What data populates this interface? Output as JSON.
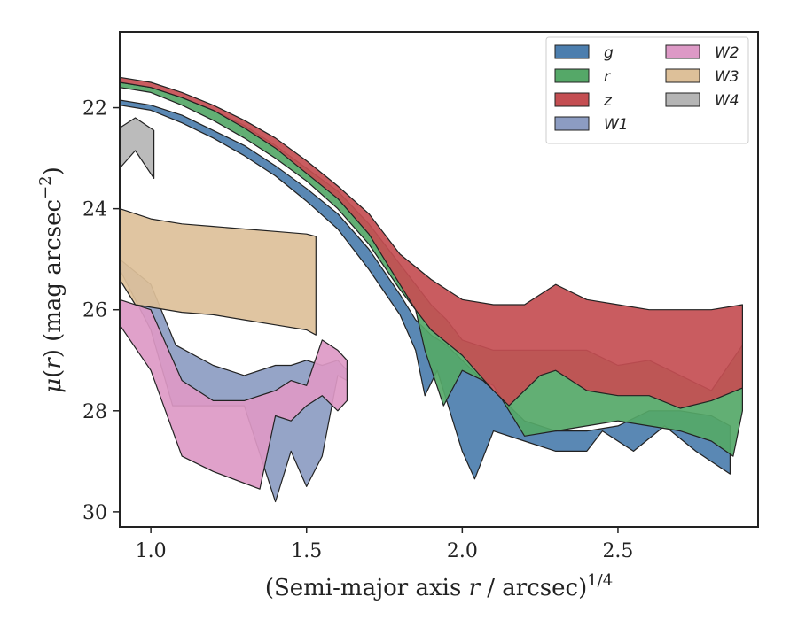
{
  "chart_data": {
    "type": "area",
    "title": "",
    "xlabel_parts": {
      "pre": "(Semi-major axis ",
      "var": "r",
      "post": " / arcsec)",
      "sup": "1/4"
    },
    "ylabel_parts": {
      "mu": "μ",
      "open": "(",
      "var": "r",
      "close": ") (mag arcsec",
      "sup": "−2",
      "end": ")"
    },
    "xlim": [
      0.9,
      2.95
    ],
    "ylim": [
      30.3,
      20.5
    ],
    "y_inverted": true,
    "x_ticks": [
      1.0,
      1.5,
      2.0,
      2.5
    ],
    "x_tick_labels": [
      "1.0",
      "1.5",
      "2.0",
      "2.5"
    ],
    "y_ticks": [
      22,
      24,
      26,
      28,
      30
    ],
    "y_tick_labels": [
      "22",
      "24",
      "26",
      "28",
      "30"
    ],
    "grid": false,
    "legend": {
      "position": "top-right",
      "columns": 2
    },
    "series": [
      {
        "name": "g",
        "color": "#4c7eae",
        "upper": [
          [
            0.9,
            21.85
          ],
          [
            1.0,
            21.95
          ],
          [
            1.1,
            22.15
          ],
          [
            1.2,
            22.45
          ],
          [
            1.3,
            22.75
          ],
          [
            1.4,
            23.15
          ],
          [
            1.5,
            23.6
          ],
          [
            1.6,
            24.1
          ],
          [
            1.7,
            24.8
          ],
          [
            1.8,
            25.7
          ],
          [
            1.85,
            26.2
          ],
          [
            1.9,
            26.5
          ],
          [
            1.95,
            26.7
          ],
          [
            2.0,
            27.0
          ],
          [
            2.05,
            27.3
          ],
          [
            2.1,
            27.6
          ],
          [
            2.15,
            27.9
          ],
          [
            2.2,
            28.2
          ],
          [
            2.3,
            28.4
          ],
          [
            2.4,
            28.4
          ],
          [
            2.5,
            28.3
          ],
          [
            2.6,
            28.0
          ],
          [
            2.7,
            28.0
          ],
          [
            2.8,
            28.1
          ],
          [
            2.86,
            28.3
          ]
        ],
        "lower": [
          [
            0.9,
            21.95
          ],
          [
            1.0,
            22.05
          ],
          [
            1.1,
            22.3
          ],
          [
            1.2,
            22.6
          ],
          [
            1.3,
            22.95
          ],
          [
            1.4,
            23.35
          ],
          [
            1.5,
            23.85
          ],
          [
            1.6,
            24.4
          ],
          [
            1.7,
            25.2
          ],
          [
            1.8,
            26.1
          ],
          [
            1.85,
            26.8
          ],
          [
            1.88,
            27.7
          ],
          [
            1.92,
            27.2
          ],
          [
            2.0,
            28.8
          ],
          [
            2.04,
            29.35
          ],
          [
            2.1,
            28.4
          ],
          [
            2.2,
            28.6
          ],
          [
            2.3,
            28.8
          ],
          [
            2.4,
            28.8
          ],
          [
            2.45,
            28.4
          ],
          [
            2.55,
            28.8
          ],
          [
            2.65,
            28.3
          ],
          [
            2.75,
            28.8
          ],
          [
            2.86,
            29.25
          ]
        ]
      },
      {
        "name": "r",
        "color": "#55a868",
        "upper": [
          [
            0.9,
            21.5
          ],
          [
            1.0,
            21.6
          ],
          [
            1.1,
            21.8
          ],
          [
            1.2,
            22.05
          ],
          [
            1.3,
            22.35
          ],
          [
            1.4,
            22.75
          ],
          [
            1.5,
            23.2
          ],
          [
            1.6,
            23.65
          ],
          [
            1.7,
            24.3
          ],
          [
            1.8,
            25.1
          ],
          [
            1.85,
            25.5
          ],
          [
            1.9,
            25.9
          ],
          [
            1.95,
            26.2
          ],
          [
            2.0,
            26.6
          ],
          [
            2.05,
            26.7
          ],
          [
            2.1,
            26.8
          ],
          [
            2.2,
            26.8
          ],
          [
            2.3,
            26.8
          ],
          [
            2.4,
            26.8
          ],
          [
            2.5,
            27.1
          ],
          [
            2.6,
            27.0
          ],
          [
            2.7,
            27.3
          ],
          [
            2.8,
            27.6
          ],
          [
            2.9,
            26.7
          ]
        ],
        "lower": [
          [
            0.9,
            21.6
          ],
          [
            1.0,
            21.7
          ],
          [
            1.1,
            21.95
          ],
          [
            1.2,
            22.25
          ],
          [
            1.3,
            22.6
          ],
          [
            1.4,
            23.0
          ],
          [
            1.5,
            23.45
          ],
          [
            1.6,
            24.0
          ],
          [
            1.7,
            24.7
          ],
          [
            1.8,
            25.6
          ],
          [
            1.85,
            26.0
          ],
          [
            1.88,
            26.8
          ],
          [
            1.94,
            27.9
          ],
          [
            2.0,
            27.2
          ],
          [
            2.1,
            27.5
          ],
          [
            2.2,
            28.5
          ],
          [
            2.3,
            28.4
          ],
          [
            2.4,
            28.3
          ],
          [
            2.5,
            28.2
          ],
          [
            2.6,
            28.3
          ],
          [
            2.7,
            28.4
          ],
          [
            2.8,
            28.6
          ],
          [
            2.87,
            28.9
          ],
          [
            2.9,
            28.0
          ]
        ]
      },
      {
        "name": "z",
        "color": "#c44e52",
        "upper": [
          [
            0.9,
            21.4
          ],
          [
            1.0,
            21.5
          ],
          [
            1.1,
            21.7
          ],
          [
            1.2,
            21.95
          ],
          [
            1.3,
            22.25
          ],
          [
            1.4,
            22.6
          ],
          [
            1.5,
            23.05
          ],
          [
            1.6,
            23.55
          ],
          [
            1.7,
            24.1
          ],
          [
            1.8,
            24.9
          ],
          [
            1.9,
            25.4
          ],
          [
            2.0,
            25.8
          ],
          [
            2.1,
            25.9
          ],
          [
            2.2,
            25.9
          ],
          [
            2.3,
            25.5
          ],
          [
            2.4,
            25.8
          ],
          [
            2.5,
            25.9
          ],
          [
            2.6,
            26.0
          ],
          [
            2.7,
            26.0
          ],
          [
            2.8,
            26.0
          ],
          [
            2.9,
            25.9
          ]
        ],
        "lower": [
          [
            0.9,
            21.5
          ],
          [
            1.0,
            21.6
          ],
          [
            1.1,
            21.8
          ],
          [
            1.2,
            22.05
          ],
          [
            1.3,
            22.4
          ],
          [
            1.4,
            22.8
          ],
          [
            1.5,
            23.3
          ],
          [
            1.6,
            23.8
          ],
          [
            1.7,
            24.5
          ],
          [
            1.75,
            25.0
          ],
          [
            1.8,
            25.5
          ],
          [
            1.85,
            26.0
          ],
          [
            1.9,
            26.4
          ],
          [
            2.0,
            26.9
          ],
          [
            2.1,
            27.6
          ],
          [
            2.15,
            27.9
          ],
          [
            2.25,
            27.3
          ],
          [
            2.3,
            27.2
          ],
          [
            2.4,
            27.6
          ],
          [
            2.5,
            27.7
          ],
          [
            2.6,
            27.7
          ],
          [
            2.7,
            27.95
          ],
          [
            2.8,
            27.8
          ],
          [
            2.9,
            27.55
          ]
        ]
      },
      {
        "name": "W1",
        "color": "#8c9cc2",
        "upper": [
          [
            0.9,
            25.0
          ],
          [
            1.0,
            25.5
          ],
          [
            1.08,
            26.7
          ],
          [
            1.2,
            27.1
          ],
          [
            1.3,
            27.3
          ],
          [
            1.4,
            27.1
          ],
          [
            1.45,
            27.1
          ],
          [
            1.5,
            27.0
          ],
          [
            1.55,
            27.1
          ],
          [
            1.6,
            27.0
          ],
          [
            1.63,
            27.2
          ]
        ],
        "lower": [
          [
            0.9,
            25.2
          ],
          [
            1.0,
            26.4
          ],
          [
            1.07,
            27.9
          ],
          [
            1.2,
            27.9
          ],
          [
            1.3,
            27.9
          ],
          [
            1.4,
            29.8
          ],
          [
            1.45,
            28.8
          ],
          [
            1.5,
            29.5
          ],
          [
            1.55,
            28.9
          ],
          [
            1.6,
            27.3
          ],
          [
            1.63,
            27.4
          ]
        ]
      },
      {
        "name": "W2",
        "color": "#dd99c6",
        "upper": [
          [
            0.9,
            25.8
          ],
          [
            1.0,
            26.0
          ],
          [
            1.1,
            27.4
          ],
          [
            1.2,
            27.8
          ],
          [
            1.3,
            27.8
          ],
          [
            1.4,
            27.6
          ],
          [
            1.45,
            27.4
          ],
          [
            1.5,
            27.5
          ],
          [
            1.55,
            26.6
          ],
          [
            1.6,
            26.8
          ],
          [
            1.63,
            27.0
          ]
        ],
        "lower": [
          [
            0.9,
            26.3
          ],
          [
            1.0,
            27.2
          ],
          [
            1.1,
            28.9
          ],
          [
            1.2,
            29.2
          ],
          [
            1.35,
            29.55
          ],
          [
            1.4,
            28.1
          ],
          [
            1.45,
            28.2
          ],
          [
            1.5,
            27.9
          ],
          [
            1.55,
            27.7
          ],
          [
            1.6,
            28.0
          ],
          [
            1.63,
            27.8
          ]
        ]
      },
      {
        "name": "W3",
        "color": "#ddc099",
        "upper": [
          [
            0.9,
            24.0
          ],
          [
            1.0,
            24.2
          ],
          [
            1.1,
            24.3
          ],
          [
            1.2,
            24.35
          ],
          [
            1.3,
            24.4
          ],
          [
            1.4,
            24.45
          ],
          [
            1.5,
            24.5
          ],
          [
            1.53,
            24.55
          ]
        ],
        "lower": [
          [
            0.9,
            25.4
          ],
          [
            0.95,
            25.9
          ],
          [
            1.1,
            26.05
          ],
          [
            1.2,
            26.1
          ],
          [
            1.3,
            26.2
          ],
          [
            1.4,
            26.3
          ],
          [
            1.5,
            26.4
          ],
          [
            1.53,
            26.5
          ]
        ]
      },
      {
        "name": "W4",
        "color": "#b5b5b5",
        "upper": [
          [
            0.9,
            22.4
          ],
          [
            0.95,
            22.2
          ],
          [
            1.01,
            22.45
          ]
        ],
        "lower": [
          [
            0.9,
            23.2
          ],
          [
            0.95,
            22.85
          ],
          [
            1.01,
            23.4
          ]
        ]
      }
    ]
  }
}
